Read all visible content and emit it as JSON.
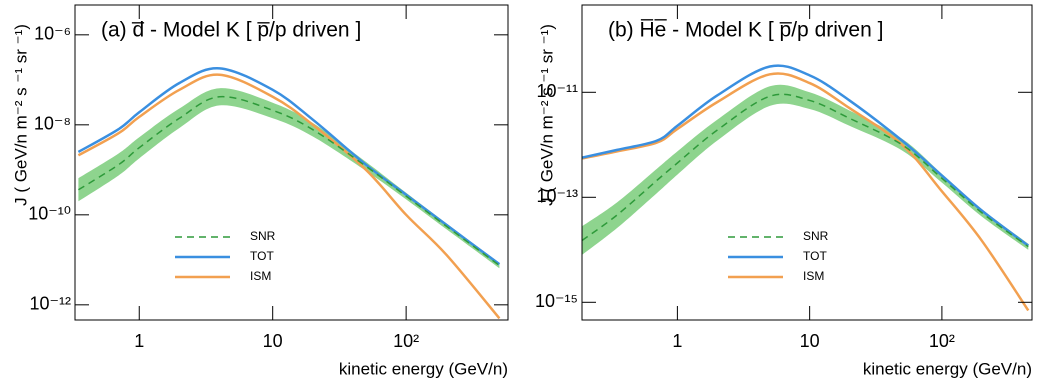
{
  "chart_data": [
    {
      "type": "line",
      "title": "(a)  d̅ - Model K  [ p̅/p driven ]",
      "x_label": "kinetic energy (GeV/n)",
      "y_label": "J ( GeV/n m⁻² s ⁻¹ sr ⁻¹)",
      "xscale": "log",
      "yscale": "log",
      "xlim": [
        0.33,
        580
      ],
      "ylim": [
        4.6e-13,
        4.6e-06
      ],
      "xticks": [
        1,
        10,
        {
          "value": 100,
          "label": "10²"
        }
      ],
      "yticks": [
        {
          "value": 1e-12,
          "label": "10⁻¹²"
        },
        {
          "value": 1e-10,
          "label": "10⁻¹⁰"
        },
        {
          "value": 1e-08,
          "label": "10⁻⁸"
        },
        {
          "value": 1e-06,
          "label": "10⁻⁶"
        }
      ],
      "legend": "lower center",
      "x": [
        0.35,
        0.7,
        1,
        2,
        4,
        10,
        20,
        50,
        100,
        200,
        500
      ],
      "series": [
        {
          "name": "SNR",
          "color": "#2e9a3a",
          "dash": true,
          "band_color": "#8ed48e",
          "values": [
            3.6e-10,
            1.3e-09,
            3.1e-09,
            1.4e-08,
            4.2e-08,
            2.1e-08,
            7.8e-09,
            1.2e-09,
            2.6e-10,
            5.6e-11,
            7.5e-12
          ],
          "upper": [
            6.5e-10,
            2.3e-09,
            5.3e-09,
            2.3e-08,
            6.5e-08,
            3.1e-08,
            1.1e-08,
            1.5e-09,
            3.1e-10,
            6.5e-11,
            8.5e-12
          ],
          "lower": [
            2e-10,
            7.5e-10,
            1.8e-09,
            8.5e-09,
            2.7e-08,
            1.4e-08,
            5.5e-09,
            9.5e-10,
            2.2e-10,
            4.8e-11,
            6.5e-12
          ]
        },
        {
          "name": "TOT",
          "color": "#3a8fe0",
          "values": [
            2.5e-09,
            8e-09,
            1.9e-08,
            8.5e-08,
            1.8e-07,
            6e-08,
            1.3e-08,
            1.3e-09,
            2.8e-10,
            6e-11,
            8e-12
          ]
        },
        {
          "name": "ISM",
          "color": "#f2a050",
          "values": [
            2.1e-09,
            6.5e-09,
            1.5e-08,
            6e-08,
            1.3e-07,
            4.2e-08,
            1e-08,
            1e-09,
            1e-10,
            1.3e-11,
            5e-13
          ]
        }
      ]
    },
    {
      "type": "line",
      "title": "(b) H̅e̅ - Model K [ p̅/p driven ]",
      "x_label": "kinetic energy (GeV/n)",
      "y_label": "J ( GeV/n m⁻² s ⁻¹ sr ⁻¹)",
      "xscale": "log",
      "yscale": "log",
      "xlim": [
        0.19,
        480
      ],
      "ylim": [
        4.6e-16,
        4.6e-10
      ],
      "xticks": [
        1,
        10,
        {
          "value": 100,
          "label": "10²"
        }
      ],
      "yticks": [
        {
          "value": 1e-15,
          "label": "10⁻¹⁵"
        },
        {
          "value": 1e-13,
          "label": "10⁻¹³"
        },
        {
          "value": 1e-11,
          "label": "10⁻¹¹"
        }
      ],
      "legend": "lower center",
      "x": [
        0.19,
        0.35,
        0.7,
        1,
        2,
        5,
        10,
        20,
        50,
        100,
        200,
        450
      ],
      "series": [
        {
          "name": "SNR",
          "color": "#2e9a3a",
          "dash": true,
          "band_color": "#8ed48e",
          "values": [
            1.5e-14,
            4.6e-14,
            2.1e-13,
            4.5e-13,
            1.9e-12,
            8.4e-12,
            7e-12,
            3.2e-12,
            1e-12,
            2.3e-13,
            5.1e-14,
            1.15e-14
          ],
          "upper": [
            2.8e-14,
            8e-14,
            3.5e-13,
            7.5e-13,
            3e-12,
            1.3e-11,
            1e-11,
            4.5e-12,
            1.3e-12,
            2.8e-13,
            6e-14,
            1.3e-14
          ],
          "lower": [
            8e-15,
            2.6e-14,
            1.2e-13,
            2.7e-13,
            1.2e-12,
            5.5e-12,
            4.8e-12,
            2.3e-12,
            7.8e-13,
            1.9e-13,
            4.3e-14,
            1e-14
          ]
        },
        {
          "name": "TOT",
          "color": "#3a8fe0",
          "values": [
            5.7e-13,
            8e-13,
            1.2e-12,
            2.3e-12,
            8.7e-12,
            3.1e-11,
            2.1e-11,
            7e-12,
            1.2e-12,
            2.6e-13,
            5.6e-14,
            1.2e-14
          ]
        },
        {
          "name": "ISM",
          "color": "#f2a050",
          "values": [
            5.5e-13,
            7.5e-13,
            1.1e-12,
            2e-12,
            6.5e-12,
            2.2e-11,
            1.5e-11,
            5e-12,
            1e-12,
            1.3e-13,
            1.5e-14,
            7e-16
          ]
        }
      ]
    }
  ]
}
